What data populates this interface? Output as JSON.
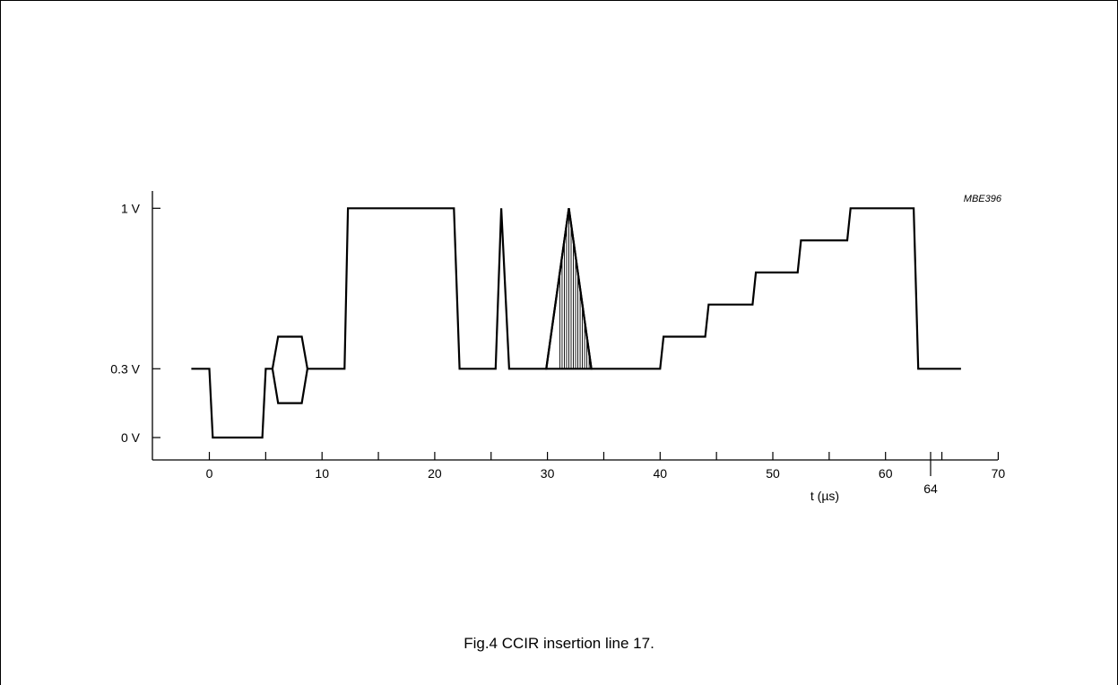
{
  "chart_data": {
    "type": "line",
    "figure_code": "MBE396",
    "caption": "Fig.4  CCIR insertion line 17.",
    "xlabel": "t (µs)",
    "x_ticks": [
      0,
      10,
      20,
      30,
      40,
      50,
      60,
      70
    ],
    "x_minor_ticks": [
      5,
      15,
      25,
      35,
      45,
      55,
      65
    ],
    "x_extra_tick": {
      "value": 64,
      "label": "64"
    },
    "y_ticks": [
      {
        "value": 0,
        "label": "0 V"
      },
      {
        "value": 0.3,
        "label": "0.3 V"
      },
      {
        "value": 1,
        "label": "1 V"
      }
    ],
    "xlim": [
      -5,
      70
    ],
    "ylim": [
      -0.08,
      1.07
    ],
    "grid": false,
    "waveform": [
      [
        -1.6,
        0.3
      ],
      [
        0,
        0.3
      ],
      [
        0.3,
        0
      ],
      [
        4.7,
        0
      ],
      [
        5,
        0.3
      ],
      [
        12,
        0.3
      ],
      [
        12.3,
        1
      ],
      [
        21.7,
        1
      ],
      [
        22.2,
        0.3
      ],
      [
        25.4,
        0.3
      ],
      [
        25.9,
        1
      ],
      [
        26.6,
        0.3
      ],
      [
        29.9,
        0.3
      ],
      [
        31.9,
        1
      ],
      [
        33.9,
        0.3
      ],
      [
        40,
        0.3
      ],
      [
        40.3,
        0.44
      ],
      [
        44,
        0.44
      ],
      [
        44.3,
        0.58
      ],
      [
        48.2,
        0.58
      ],
      [
        48.5,
        0.72
      ],
      [
        52.2,
        0.72
      ],
      [
        52.5,
        0.86
      ],
      [
        56.6,
        0.86
      ],
      [
        56.9,
        1
      ],
      [
        62.5,
        1
      ],
      [
        62.9,
        0.3
      ],
      [
        66.7,
        0.3
      ]
    ],
    "burst": {
      "rise_start": 5.6,
      "top_start": 6.1,
      "top_end": 8.2,
      "fall_end": 8.7,
      "high": 0.44,
      "low": 0.15,
      "hatch_lines": 6
    },
    "packet": {
      "start": 29.9,
      "peak": 31.9,
      "end": 33.9,
      "peak_value": 1,
      "base_value": 0.3,
      "fill_start": 30.9,
      "fill_end": 33.9,
      "hatch_lines": 14
    }
  }
}
